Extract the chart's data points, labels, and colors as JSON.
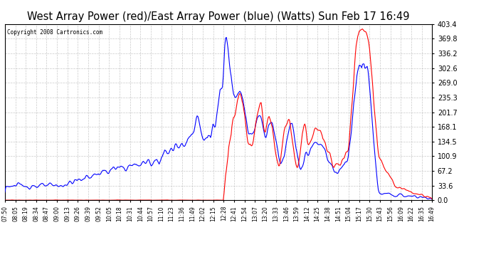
{
  "title": "West Array Power (red)/East Array Power (blue) (Watts) Sun Feb 17 16:49",
  "copyright": "Copyright 2008 Cartronics.com",
  "ylim": [
    0.0,
    403.4
  ],
  "yticks": [
    0.0,
    33.6,
    67.2,
    100.9,
    134.5,
    168.1,
    201.7,
    235.3,
    269.0,
    302.6,
    336.2,
    369.8,
    403.4
  ],
  "background_color": "#ffffff",
  "grid_color": "#bbbbbb",
  "title_fontsize": 10.5,
  "line_color_red": "#ff0000",
  "line_color_blue": "#0000ff",
  "xtick_labels": [
    "07:50",
    "08:05",
    "08:19",
    "08:34",
    "08:47",
    "09:00",
    "09:13",
    "09:26",
    "09:39",
    "09:52",
    "10:05",
    "10:18",
    "10:31",
    "10:44",
    "10:57",
    "11:10",
    "11:23",
    "11:36",
    "11:49",
    "12:02",
    "12:15",
    "12:28",
    "12:41",
    "12:54",
    "13:07",
    "13:20",
    "13:33",
    "13:46",
    "13:59",
    "14:12",
    "14:25",
    "14:38",
    "14:51",
    "15:04",
    "15:17",
    "15:30",
    "15:43",
    "15:56",
    "16:09",
    "16:22",
    "16:35",
    "16:49"
  ]
}
